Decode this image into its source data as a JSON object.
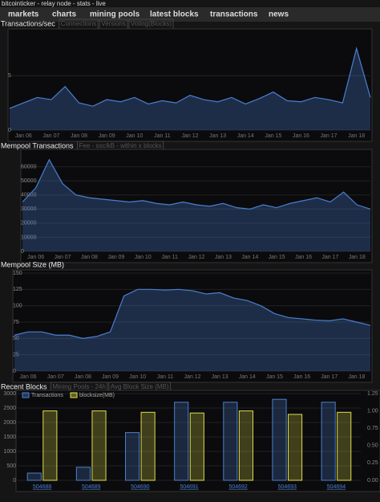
{
  "header": {
    "title": "bitcointicker - relay node - stats - live"
  },
  "nav": [
    "markets",
    "charts",
    "mining pools",
    "latest blocks",
    "transactions",
    "news"
  ],
  "chart_data": [
    {
      "type": "area",
      "title": "Transactions/sec",
      "tabs": [
        "Connections",
        "Versions",
        "Voting(Blocks)"
      ],
      "categories": [
        null,
        "Jan 06",
        null,
        "Jan 07",
        null,
        "Jan 08",
        null,
        "Jan 09",
        null,
        "Jan 10",
        null,
        "Jan 11",
        null,
        "Jan 12",
        null,
        "Jan 13",
        null,
        "Jan 14",
        null,
        "Jan 15",
        null,
        "Jan 16",
        null,
        "Jan 17",
        null,
        "Jan 18",
        null
      ],
      "values": [
        2,
        2.5,
        3,
        2.8,
        4,
        2.5,
        2.2,
        2.8,
        2.6,
        3,
        2.4,
        2.7,
        2.5,
        3.2,
        2.8,
        2.6,
        3,
        2.4,
        2.9,
        3.5,
        2.7,
        2.6,
        3,
        2.8,
        2.5,
        7.5,
        3
      ],
      "color": "#4a7fd0",
      "ylim": [
        0,
        9
      ],
      "yticks": [
        0,
        5
      ]
    },
    {
      "type": "area",
      "title": "Mempool Transactions",
      "tabs": [
        "Fee - ssc/kB - within x blocks"
      ],
      "categories": [
        null,
        "Jan 06",
        null,
        "Jan 07",
        null,
        "Jan 08",
        null,
        "Jan 09",
        null,
        "Jan 10",
        null,
        "Jan 11",
        null,
        "Jan 12",
        null,
        "Jan 13",
        null,
        "Jan 14",
        null,
        "Jan 15",
        null,
        "Jan 16",
        null,
        "Jan 17",
        null,
        "Jan 18",
        null
      ],
      "values": [
        35000,
        45000,
        65000,
        48000,
        40000,
        38000,
        37000,
        36000,
        35000,
        36000,
        34000,
        33000,
        35000,
        33000,
        32000,
        34000,
        31000,
        30000,
        33000,
        31000,
        34000,
        36000,
        38000,
        35000,
        42000,
        33000,
        30000
      ],
      "color": "#4a7fd0",
      "ylim": [
        0,
        70000
      ],
      "yticks": [
        0,
        10000,
        20000,
        30000,
        40000,
        50000,
        60000
      ]
    },
    {
      "type": "area",
      "title": "Mempool Size (MB)",
      "categories": [
        null,
        "Jan 06",
        null,
        "Jan 07",
        null,
        "Jan 08",
        null,
        "Jan 09",
        null,
        "Jan 10",
        null,
        "Jan 11",
        null,
        "Jan 12",
        null,
        "Jan 13",
        null,
        "Jan 14",
        null,
        "Jan 15",
        null,
        "Jan 16",
        null,
        "Jan 17",
        null,
        "Jan 18",
        null
      ],
      "values": [
        55,
        60,
        60,
        55,
        55,
        50,
        53,
        60,
        115,
        125,
        125,
        124,
        125,
        123,
        118,
        120,
        112,
        108,
        100,
        88,
        82,
        80,
        78,
        77,
        80,
        75,
        70
      ],
      "color": "#4a7fd0",
      "ylim": [
        0,
        150
      ],
      "yticks": [
        0,
        25,
        50,
        75,
        100,
        125,
        150
      ]
    },
    {
      "type": "bar",
      "title": "Recent Blocks",
      "tabs": [
        "Mining Pools - 24h",
        "Avg Block Size (MB)"
      ],
      "categories": [
        "504688",
        "504689",
        "504690",
        "504691",
        "504692",
        "504693",
        "504694"
      ],
      "series": [
        {
          "name": "Transactions",
          "color": "#4a7fd0",
          "values": [
            250,
            450,
            1650,
            2700,
            2700,
            2800,
            2700
          ]
        },
        {
          "name": "blocksize(MB)",
          "color": "#e0dc4a",
          "axis": "y2",
          "values": [
            1.0,
            1.0,
            0.98,
            0.97,
            1.0,
            0.95,
            0.98
          ]
        }
      ],
      "ylim": [
        0,
        3000
      ],
      "yticks": [
        0,
        500,
        1000,
        1500,
        2000,
        2500,
        3000
      ],
      "y2lim": [
        0,
        1.25
      ],
      "y2ticks": [
        {
          "value": 0,
          "label": "0.00"
        },
        {
          "value": 0.25,
          "label": "0.25"
        },
        {
          "value": 0.5,
          "label": "0.50"
        },
        {
          "value": 0.75,
          "label": "0.75"
        },
        {
          "value": 1,
          "label": "1.00"
        },
        {
          "value": 1.25,
          "label": "1.25"
        }
      ]
    }
  ]
}
